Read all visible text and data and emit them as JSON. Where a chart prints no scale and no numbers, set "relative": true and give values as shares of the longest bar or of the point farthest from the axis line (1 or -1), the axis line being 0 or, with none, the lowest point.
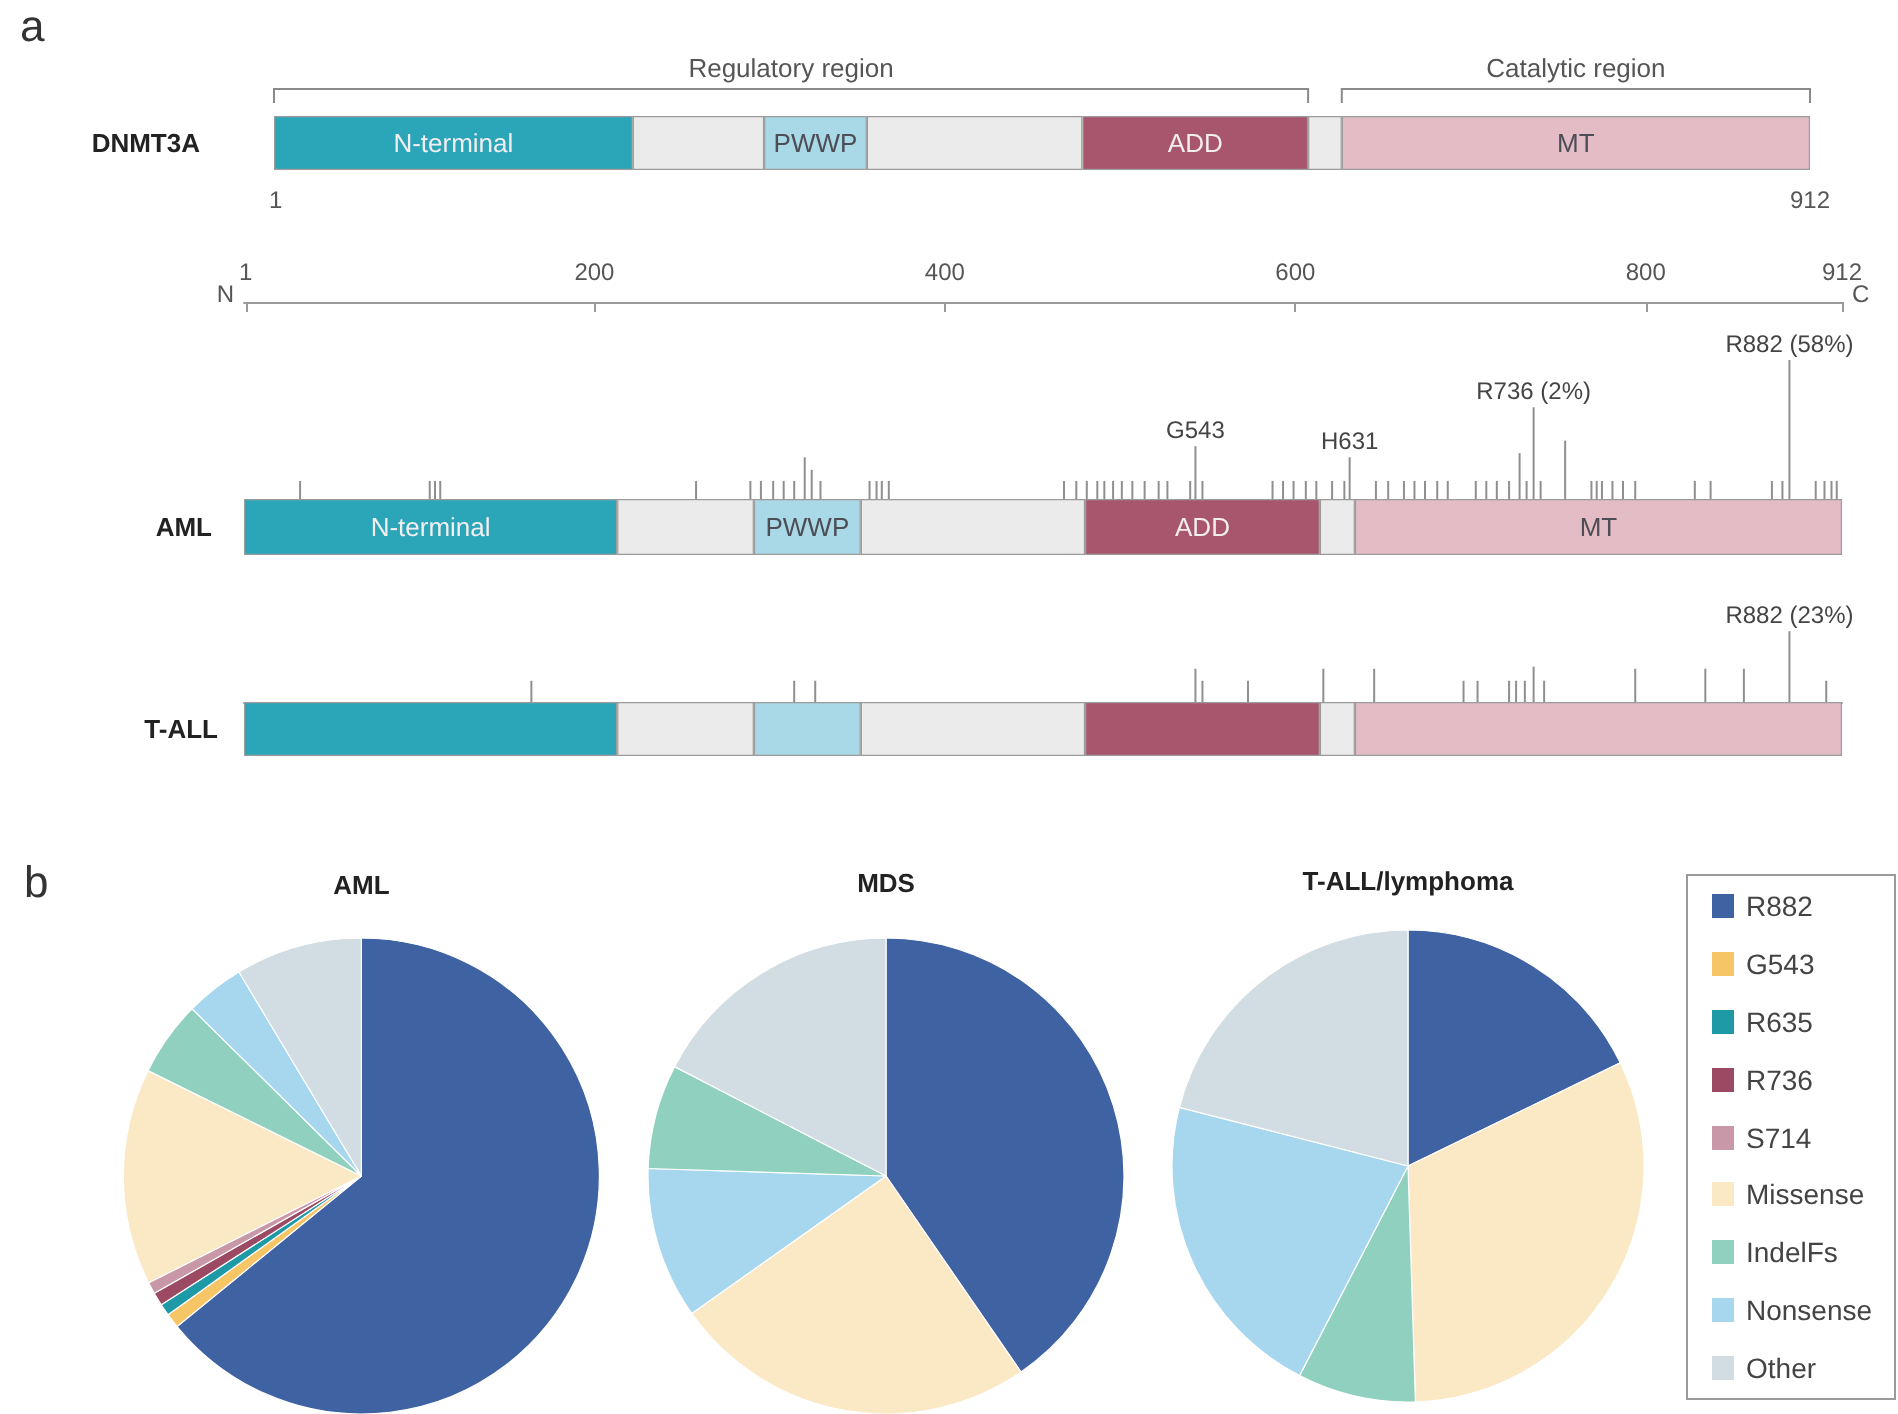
{
  "chart_data": [
    {
      "type": "bar",
      "orientation": "horizontal",
      "stacked": true,
      "categories": [
        "DNMT3A"
      ],
      "series": [
        {
          "name": "N-terminal",
          "color": "#2ba6b9",
          "values": [
            213
          ]
        },
        {
          "color": "#ebebeb",
          "values": [
            78
          ]
        },
        {
          "name": "PWWP",
          "color": "#a9d8e6",
          "values": [
            61
          ]
        },
        {
          "color": "#ebebeb",
          "values": [
            128
          ]
        },
        {
          "name": "ADD",
          "color": "#a8566d",
          "values": [
            134
          ]
        },
        {
          "color": "#ebebeb",
          "values": [
            20
          ]
        },
        {
          "name": "MT",
          "color": "#e3bcc6",
          "values": [
            278
          ]
        }
      ],
      "xlim": [
        0,
        912
      ],
      "xticks": [
        1,
        912
      ],
      "annotations": [
        "a",
        "Regulatory region",
        "Catalytic region"
      ]
    },
    {
      "type": "bar",
      "relative": true,
      "color": "#8f8f8f",
      "xlim": [
        0,
        912
      ],
      "xticks": [
        1,
        200,
        400,
        600,
        800,
        912
      ],
      "tick_labels": "x",
      "x": [
        32,
        106,
        109,
        112,
        258,
        289,
        295,
        302,
        308,
        314,
        320,
        324,
        329,
        357,
        361,
        364,
        368,
        468,
        475,
        481,
        487,
        491,
        496,
        501,
        507,
        514,
        522,
        527,
        540,
        543,
        547,
        587,
        593,
        599,
        606,
        612,
        621,
        628,
        631,
        646,
        653,
        662,
        668,
        674,
        681,
        687,
        703,
        709,
        715,
        722,
        728,
        732,
        736,
        740,
        754,
        769,
        772,
        775,
        781,
        787,
        794,
        828,
        837,
        872,
        878,
        882,
        897,
        902,
        906,
        909
      ],
      "values": [
        0.13,
        0.13,
        0.13,
        0.13,
        0.13,
        0.13,
        0.13,
        0.13,
        0.13,
        0.13,
        0.3,
        0.21,
        0.13,
        0.13,
        0.13,
        0.13,
        0.13,
        0.13,
        0.13,
        0.13,
        0.13,
        0.13,
        0.13,
        0.13,
        0.13,
        0.13,
        0.13,
        0.13,
        0.13,
        0.38,
        0.13,
        0.13,
        0.13,
        0.13,
        0.13,
        0.13,
        0.13,
        0.13,
        0.3,
        0.13,
        0.13,
        0.13,
        0.13,
        0.13,
        0.13,
        0.13,
        0.13,
        0.13,
        0.13,
        0.13,
        0.33,
        0.13,
        0.66,
        0.13,
        0.42,
        0.13,
        0.13,
        0.13,
        0.13,
        0.13,
        0.13,
        0.13,
        0.13,
        0.13,
        0.13,
        1,
        0.13,
        0.13,
        0.13,
        0.13
      ],
      "annotations": [
        {
          "text": "G543",
          "x": 543,
          "y": 0.38
        },
        {
          "text": "H631",
          "x": 631,
          "y": 0.3
        },
        {
          "text": "R736 (2%)",
          "x": 736,
          "y": 0.66
        },
        {
          "text": "R882 (58%)",
          "x": 882,
          "y": 1
        },
        "N",
        "C"
      ]
    },
    {
      "type": "bar",
      "orientation": "horizontal",
      "stacked": true,
      "categories": [
        "AML"
      ],
      "series": [
        {
          "name": "N-terminal",
          "color": "#2ba6b9",
          "values": [
            213
          ]
        },
        {
          "color": "#ebebeb",
          "values": [
            78
          ]
        },
        {
          "name": "PWWP",
          "color": "#a9d8e6",
          "values": [
            61
          ]
        },
        {
          "color": "#ebebeb",
          "values": [
            128
          ]
        },
        {
          "name": "ADD",
          "color": "#a8566d",
          "values": [
            134
          ]
        },
        {
          "color": "#ebebeb",
          "values": [
            20
          ]
        },
        {
          "name": "MT",
          "color": "#e3bcc6",
          "values": [
            278
          ]
        }
      ],
      "xlim": [
        0,
        912
      ],
      "tick_labels": "y"
    },
    {
      "type": "bar",
      "relative": true,
      "color": "#8f8f8f",
      "xlim": [
        0,
        912
      ],
      "tick_labels": false,
      "x": [
        164,
        314,
        326,
        543,
        547,
        573,
        616,
        645,
        696,
        704,
        722,
        726,
        731,
        736,
        742,
        794,
        834,
        856,
        882,
        903
      ],
      "values": [
        0.3,
        0.3,
        0.3,
        0.47,
        0.3,
        0.3,
        0.47,
        0.47,
        0.3,
        0.3,
        0.3,
        0.3,
        0.3,
        0.5,
        0.3,
        0.47,
        0.47,
        0.47,
        1,
        0.3
      ],
      "annotations": [
        {
          "text": "R882 (23%)",
          "x": 882,
          "y": 1
        }
      ]
    },
    {
      "type": "bar",
      "orientation": "horizontal",
      "stacked": true,
      "categories": [
        "T-ALL"
      ],
      "series": [
        {
          "color": "#2ba6b9",
          "values": [
            213
          ]
        },
        {
          "color": "#ebebeb",
          "values": [
            78
          ]
        },
        {
          "color": "#a9d8e6",
          "values": [
            61
          ]
        },
        {
          "color": "#ebebeb",
          "values": [
            128
          ]
        },
        {
          "color": "#a8566d",
          "values": [
            134
          ]
        },
        {
          "color": "#ebebeb",
          "values": [
            20
          ]
        },
        {
          "color": "#e3bcc6",
          "values": [
            278
          ]
        }
      ],
      "xlim": [
        0,
        912
      ],
      "tick_labels": "y"
    },
    {
      "type": "pie",
      "title": "AML",
      "categories": [
        "R882",
        "G543",
        "R635",
        "R736",
        "S714",
        "Missense",
        "IndelFs",
        "Nonsense",
        "Other"
      ],
      "values": [
        64.1,
        1.0,
        0.8,
        0.9,
        0.8,
        14.7,
        5.1,
        4.0,
        8.6
      ],
      "colors": [
        "#3f62a3",
        "#f6c565",
        "#1d9aa6",
        "#9c4963",
        "#c898a8",
        "#fbe8c4",
        "#8fd0bf",
        "#a6d7ef",
        "#d2dce3"
      ],
      "legend": "right",
      "annotations": [
        "b"
      ]
    },
    {
      "type": "pie",
      "title": "MDS",
      "categories": [
        null,
        null,
        null,
        null,
        null
      ],
      "values": [
        40.4,
        24.8,
        10.3,
        7.1,
        17.4
      ],
      "colors": [
        "#3f62a3",
        "#fbe8c4",
        "#a6d7ef",
        "#8fd0bf",
        "#d2dce3"
      ]
    },
    {
      "type": "pie",
      "title": "T-ALL/lymphoma",
      "categories": [
        null,
        null,
        null,
        null,
        null
      ],
      "values": [
        17.8,
        31.7,
        8.1,
        21.4,
        21.0
      ],
      "colors": [
        "#3f62a3",
        "#fbe8c4",
        "#8fd0bf",
        "#a6d7ef",
        "#d2dce3"
      ]
    }
  ]
}
